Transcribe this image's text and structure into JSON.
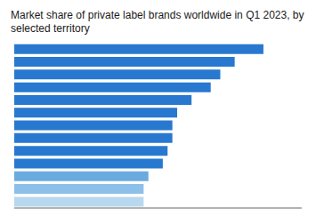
{
  "chart_data": {
    "type": "bar",
    "orientation": "horizontal",
    "title": "Market share of private label brands worldwide in Q1 2023, by selected territory",
    "categories": [
      null,
      null,
      null,
      null,
      null,
      null,
      null,
      null,
      null,
      null,
      null,
      null,
      null
    ],
    "values": [
      52,
      46,
      43,
      41,
      37,
      34,
      33,
      33,
      32,
      31,
      28,
      27,
      27
    ],
    "colors": [
      "#2878d0",
      "#2878d0",
      "#2878d0",
      "#2878d0",
      "#2878d0",
      "#2878d0",
      "#2878d0",
      "#2878d0",
      "#2878d0",
      "#2878d0",
      "#6aabdf",
      "#8dc0e8",
      "#b8d8f0"
    ],
    "xlim": [
      0,
      60
    ],
    "grid": false,
    "tick_labels": false
  }
}
